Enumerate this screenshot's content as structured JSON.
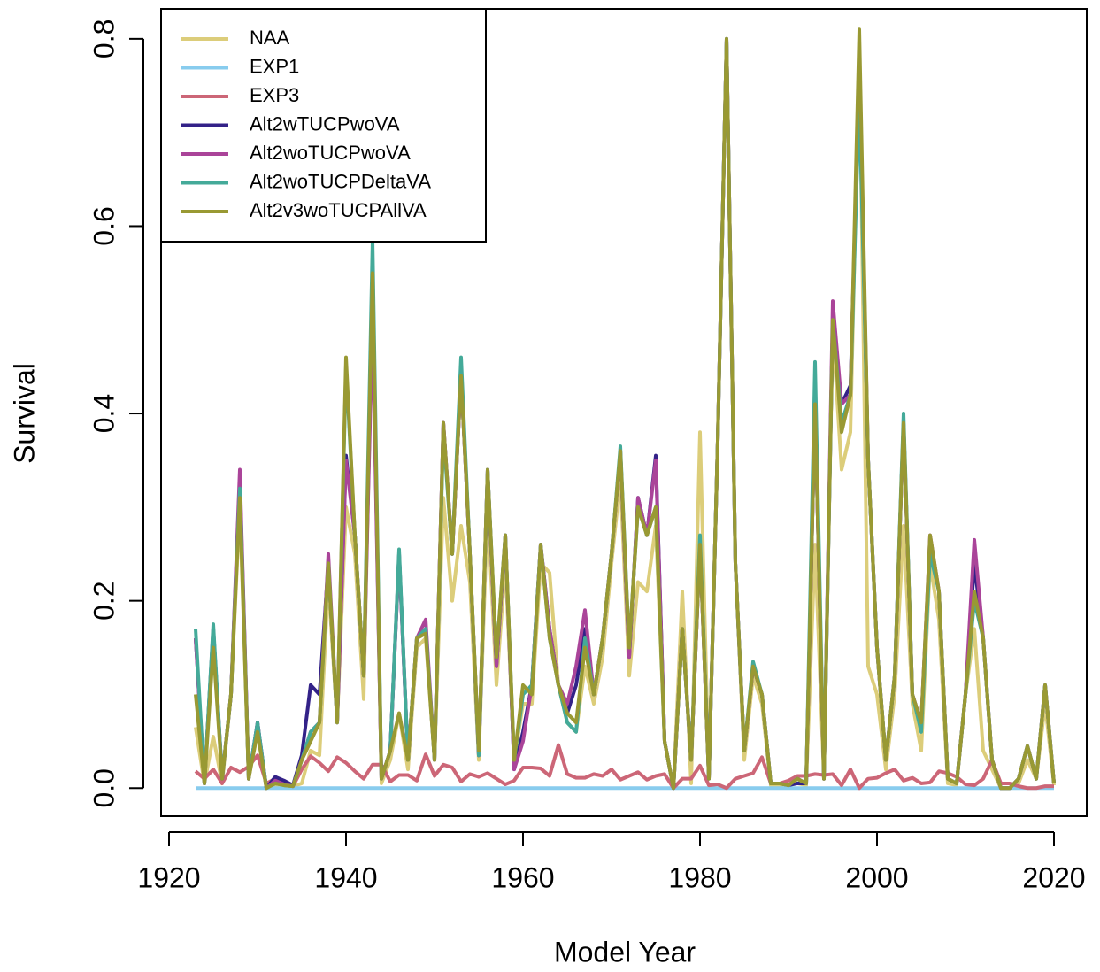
{
  "chart_data": {
    "type": "line",
    "xlabel": "Model Year",
    "ylabel": "Survival",
    "xlim": [
      1919.1,
      2023.7
    ],
    "ylim": [
      -0.03,
      0.832
    ],
    "xticks": [
      1920,
      1940,
      1960,
      1980,
      2000,
      2020
    ],
    "yticks": [
      {
        "value": 0,
        "label": "0.0"
      },
      0.2,
      0.4,
      0.6,
      0.8
    ],
    "legend": "top-left",
    "x": [
      1923,
      1924,
      1925,
      1926,
      1927,
      1928,
      1929,
      1930,
      1931,
      1932,
      1933,
      1934,
      1935,
      1936,
      1937,
      1938,
      1939,
      1940,
      1941,
      1942,
      1943,
      1944,
      1945,
      1946,
      1947,
      1948,
      1949,
      1950,
      1951,
      1952,
      1953,
      1954,
      1955,
      1956,
      1957,
      1958,
      1959,
      1960,
      1961,
      1962,
      1963,
      1964,
      1965,
      1966,
      1967,
      1968,
      1969,
      1970,
      1971,
      1972,
      1973,
      1974,
      1975,
      1976,
      1977,
      1978,
      1979,
      1980,
      1981,
      1982,
      1983,
      1984,
      1985,
      1986,
      1987,
      1988,
      1989,
      1990,
      1991,
      1992,
      1993,
      1994,
      1995,
      1996,
      1997,
      1998,
      1999,
      2000,
      2001,
      2002,
      2003,
      2004,
      2005,
      2006,
      2007,
      2008,
      2009,
      2010,
      2011,
      2012,
      2013,
      2014,
      2015,
      2016,
      2017,
      2018,
      2019,
      2020
    ],
    "series": [
      {
        "name": "NAA",
        "color": "#dccd7a",
        "values": [
          0.065,
          0.005,
          0.055,
          0.005,
          0.1,
          0.3,
          0.01,
          0.06,
          0.0,
          0.003,
          0.002,
          0.002,
          0.005,
          0.04,
          0.035,
          0.22,
          0.07,
          0.3,
          0.25,
          0.095,
          0.53,
          0.005,
          0.03,
          0.08,
          0.02,
          0.15,
          0.16,
          0.03,
          0.31,
          0.2,
          0.28,
          0.22,
          0.03,
          0.3,
          0.11,
          0.24,
          0.03,
          0.09,
          0.09,
          0.24,
          0.23,
          0.11,
          0.07,
          0.06,
          0.13,
          0.09,
          0.14,
          0.24,
          0.33,
          0.12,
          0.22,
          0.21,
          0.28,
          0.05,
          0.0,
          0.21,
          0.005,
          0.38,
          0.01,
          0.37,
          0.8,
          0.24,
          0.03,
          0.12,
          0.09,
          0.003,
          0.003,
          0.003,
          0.005,
          0.003,
          0.26,
          0.01,
          0.49,
          0.34,
          0.38,
          0.79,
          0.13,
          0.1,
          0.02,
          0.1,
          0.28,
          0.09,
          0.04,
          0.24,
          0.18,
          0.005,
          0.003,
          0.1,
          0.17,
          0.04,
          0.02,
          0.0,
          0.0,
          0.005,
          0.03,
          0.01,
          0.09,
          0.003
        ]
      },
      {
        "name": "EXP1",
        "color": "#88ccee",
        "values": [
          0,
          0,
          0,
          0,
          0,
          0,
          0,
          0,
          0,
          0,
          0,
          0,
          0,
          0,
          0,
          0,
          0,
          0,
          0,
          0,
          0,
          0,
          0,
          0,
          0,
          0,
          0,
          0,
          0,
          0,
          0,
          0,
          0,
          0,
          0,
          0,
          0,
          0,
          0,
          0,
          0,
          0,
          0,
          0,
          0,
          0,
          0,
          0,
          0,
          0,
          0,
          0,
          0,
          0,
          0,
          0,
          0,
          0,
          0,
          0,
          0,
          0,
          0,
          0,
          0,
          0,
          0,
          0,
          0,
          0,
          0,
          0,
          0,
          0,
          0,
          0,
          0,
          0,
          0,
          0,
          0,
          0,
          0,
          0,
          0,
          0,
          0,
          0,
          0,
          0,
          0,
          0,
          0,
          0,
          0,
          0,
          0,
          0
        ]
      },
      {
        "name": "EXP3",
        "color": "#cc6677",
        "values": [
          0.018,
          0.01,
          0.02,
          0.005,
          0.022,
          0.017,
          0.023,
          0.035,
          0.005,
          0.01,
          0.008,
          0.002,
          0.02,
          0.034,
          0.027,
          0.018,
          0.033,
          0.027,
          0.018,
          0.01,
          0.025,
          0.025,
          0.007,
          0.014,
          0.014,
          0.008,
          0.036,
          0.013,
          0.025,
          0.022,
          0.007,
          0.015,
          0.012,
          0.016,
          0.01,
          0.004,
          0.008,
          0.022,
          0.022,
          0.021,
          0.013,
          0.046,
          0.015,
          0.011,
          0.011,
          0.015,
          0.013,
          0.02,
          0.009,
          0.013,
          0.017,
          0.009,
          0.013,
          0.015,
          0.0,
          0.01,
          0.01,
          0.024,
          0.003,
          0.004,
          0.0,
          0.01,
          0.013,
          0.016,
          0.033,
          0.005,
          0.005,
          0.008,
          0.013,
          0.013,
          0.015,
          0.014,
          0.015,
          0.003,
          0.02,
          0.0,
          0.01,
          0.011,
          0.016,
          0.02,
          0.008,
          0.011,
          0.005,
          0.006,
          0.018,
          0.016,
          0.012,
          0.004,
          0.003,
          0.01,
          0.03,
          0.005,
          0.005,
          0.002,
          0.0,
          0.0,
          0.002,
          0.002
        ]
      },
      {
        "name": "Alt2wTUCPwoVA",
        "color": "#332288",
        "values": [
          0.16,
          0.005,
          0.17,
          0.01,
          0.1,
          0.33,
          0.01,
          0.07,
          0.0,
          0.012,
          0.008,
          0.003,
          0.035,
          0.11,
          0.1,
          0.24,
          0.07,
          0.355,
          0.27,
          0.12,
          0.52,
          0.01,
          0.04,
          0.25,
          0.03,
          0.16,
          0.17,
          0.03,
          0.39,
          0.25,
          0.44,
          0.25,
          0.035,
          0.34,
          0.13,
          0.27,
          0.02,
          0.06,
          0.11,
          0.26,
          0.17,
          0.11,
          0.08,
          0.11,
          0.17,
          0.1,
          0.16,
          0.25,
          0.36,
          0.14,
          0.31,
          0.27,
          0.355,
          0.05,
          0.0,
          0.17,
          0.03,
          0.26,
          0.01,
          0.37,
          0.8,
          0.24,
          0.04,
          0.13,
          0.1,
          0.005,
          0.005,
          0.003,
          0.005,
          0.005,
          0.41,
          0.01,
          0.5,
          0.41,
          0.43,
          0.76,
          0.35,
          0.15,
          0.03,
          0.12,
          0.39,
          0.1,
          0.07,
          0.26,
          0.21,
          0.01,
          0.005,
          0.1,
          0.24,
          0.16,
          0.03,
          0.0,
          0.0,
          0.01,
          0.045,
          0.01,
          0.11,
          0.005
        ]
      },
      {
        "name": "Alt2woTUCPwoVA",
        "color": "#aa4499",
        "values": [
          0.16,
          0.005,
          0.17,
          0.01,
          0.1,
          0.34,
          0.01,
          0.07,
          0.0,
          0.008,
          0.004,
          0.002,
          0.03,
          0.06,
          0.07,
          0.25,
          0.07,
          0.35,
          0.27,
          0.12,
          0.5,
          0.01,
          0.04,
          0.25,
          0.03,
          0.16,
          0.18,
          0.03,
          0.39,
          0.25,
          0.44,
          0.25,
          0.035,
          0.34,
          0.13,
          0.27,
          0.02,
          0.05,
          0.11,
          0.26,
          0.17,
          0.11,
          0.09,
          0.13,
          0.19,
          0.1,
          0.16,
          0.25,
          0.36,
          0.14,
          0.31,
          0.27,
          0.35,
          0.05,
          0.0,
          0.17,
          0.03,
          0.26,
          0.01,
          0.37,
          0.8,
          0.24,
          0.04,
          0.13,
          0.1,
          0.005,
          0.005,
          0.003,
          0.01,
          0.005,
          0.41,
          0.01,
          0.52,
          0.41,
          0.42,
          0.78,
          0.35,
          0.15,
          0.03,
          0.12,
          0.39,
          0.1,
          0.07,
          0.27,
          0.21,
          0.01,
          0.005,
          0.1,
          0.265,
          0.16,
          0.03,
          0.0,
          0.0,
          0.01,
          0.045,
          0.01,
          0.11,
          0.005
        ]
      },
      {
        "name": "Alt2woTUCPDeltaVA",
        "color": "#44aa99",
        "values": [
          0.17,
          0.005,
          0.175,
          0.01,
          0.1,
          0.32,
          0.01,
          0.07,
          0.0,
          0.005,
          0.003,
          0.002,
          0.03,
          0.06,
          0.07,
          0.24,
          0.07,
          0.45,
          0.27,
          0.12,
          0.585,
          0.01,
          0.04,
          0.255,
          0.03,
          0.16,
          0.17,
          0.03,
          0.38,
          0.25,
          0.46,
          0.25,
          0.035,
          0.34,
          0.14,
          0.27,
          0.03,
          0.1,
          0.11,
          0.26,
          0.16,
          0.11,
          0.07,
          0.06,
          0.16,
          0.1,
          0.16,
          0.25,
          0.365,
          0.15,
          0.3,
          0.27,
          0.3,
          0.05,
          0.0,
          0.17,
          0.03,
          0.27,
          0.01,
          0.37,
          0.8,
          0.24,
          0.04,
          0.135,
          0.1,
          0.005,
          0.005,
          0.003,
          0.01,
          0.005,
          0.455,
          0.01,
          0.5,
          0.39,
          0.42,
          0.74,
          0.35,
          0.15,
          0.03,
          0.12,
          0.4,
          0.1,
          0.06,
          0.25,
          0.21,
          0.01,
          0.005,
          0.1,
          0.2,
          0.16,
          0.03,
          0.0,
          0.0,
          0.01,
          0.045,
          0.01,
          0.11,
          0.005
        ]
      },
      {
        "name": "Alt2v3woTUCPAllVA",
        "color": "#999933",
        "values": [
          0.1,
          0.005,
          0.15,
          0.01,
          0.1,
          0.31,
          0.01,
          0.06,
          0.0,
          0.005,
          0.003,
          0.002,
          0.03,
          0.05,
          0.07,
          0.24,
          0.07,
          0.46,
          0.27,
          0.12,
          0.55,
          0.01,
          0.04,
          0.08,
          0.03,
          0.16,
          0.165,
          0.03,
          0.39,
          0.25,
          0.44,
          0.25,
          0.04,
          0.34,
          0.14,
          0.27,
          0.03,
          0.11,
          0.1,
          0.26,
          0.16,
          0.11,
          0.08,
          0.07,
          0.15,
          0.1,
          0.16,
          0.25,
          0.36,
          0.15,
          0.3,
          0.27,
          0.3,
          0.05,
          0.0,
          0.17,
          0.03,
          0.26,
          0.01,
          0.37,
          0.8,
          0.24,
          0.04,
          0.13,
          0.1,
          0.005,
          0.005,
          0.003,
          0.01,
          0.005,
          0.41,
          0.01,
          0.5,
          0.38,
          0.42,
          0.81,
          0.35,
          0.15,
          0.03,
          0.12,
          0.39,
          0.1,
          0.07,
          0.27,
          0.21,
          0.01,
          0.005,
          0.1,
          0.21,
          0.16,
          0.03,
          0.0,
          0.0,
          0.01,
          0.045,
          0.01,
          0.11,
          0.005
        ]
      }
    ]
  }
}
